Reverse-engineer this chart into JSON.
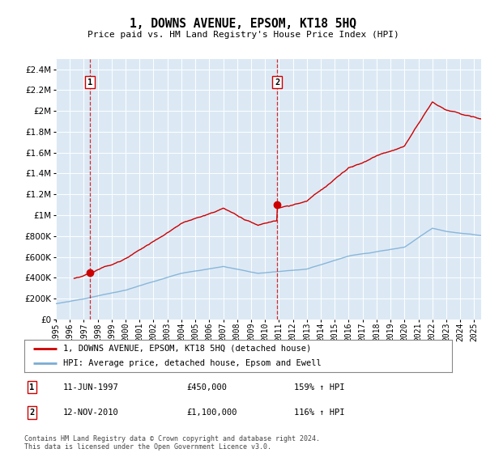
{
  "title": "1, DOWNS AVENUE, EPSOM, KT18 5HQ",
  "subtitle": "Price paid vs. HM Land Registry's House Price Index (HPI)",
  "legend_line1": "1, DOWNS AVENUE, EPSOM, KT18 5HQ (detached house)",
  "legend_line2": "HPI: Average price, detached house, Epsom and Ewell",
  "annotation1_label": "1",
  "annotation1_date": "11-JUN-1997",
  "annotation1_price": "£450,000",
  "annotation1_hpi": "159% ↑ HPI",
  "annotation2_label": "2",
  "annotation2_date": "12-NOV-2010",
  "annotation2_price": "£1,100,000",
  "annotation2_hpi": "116% ↑ HPI",
  "footer": "Contains HM Land Registry data © Crown copyright and database right 2024.\nThis data is licensed under the Open Government Licence v3.0.",
  "bg_color": "#dce9f5",
  "fig_bg_color": "#ffffff",
  "grid_color": "#ffffff",
  "red_line_color": "#cc0000",
  "blue_line_color": "#7aadd4",
  "sale1_x": 1997.44,
  "sale1_y": 450000,
  "sale2_x": 2010.87,
  "sale2_y": 1100000,
  "xmin": 1995.0,
  "xmax": 2025.5,
  "ymin": 0,
  "ymax": 2500000,
  "yticks": [
    0,
    200000,
    400000,
    600000,
    800000,
    1000000,
    1200000,
    1400000,
    1600000,
    1800000,
    2000000,
    2200000,
    2400000
  ]
}
